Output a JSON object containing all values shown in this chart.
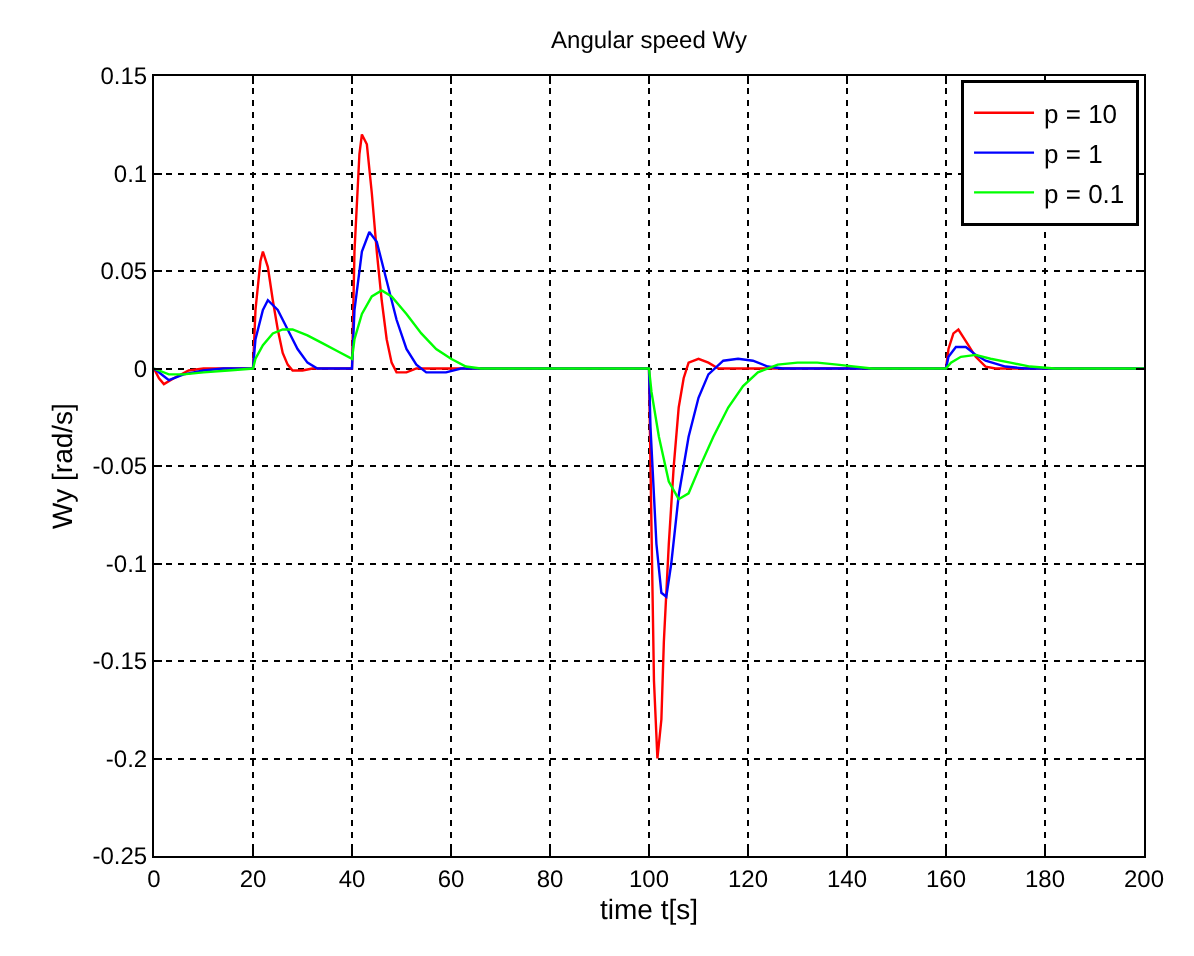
{
  "chart_data": {
    "type": "line",
    "title": "Angular speed Wy",
    "xlabel": "time t[s]",
    "ylabel": "Wy [rad/s]",
    "xlim": [
      0,
      200
    ],
    "xticks": [
      0,
      20,
      40,
      60,
      80,
      100,
      120,
      140,
      160,
      180,
      200
    ],
    "ylim": [
      -0.25,
      0.15
    ],
    "yticks": [
      -0.25,
      -0.2,
      -0.15,
      -0.1,
      -0.05,
      0,
      0.05,
      0.1,
      0.15
    ],
    "grid": true,
    "legend": "top right",
    "line_style": "solid",
    "marker": "none",
    "series": [
      {
        "name": "p = 10",
        "color": "#ff0000",
        "x": [
          0,
          1,
          2,
          4,
          7,
          10,
          20,
          20.5,
          21.5,
          22,
          23,
          24,
          25,
          26,
          27,
          28,
          30,
          32,
          40,
          40.5,
          41.5,
          42,
          43,
          44,
          45,
          46,
          47,
          48,
          49,
          51,
          53,
          60,
          100,
          100.3,
          101,
          101.7,
          102.5,
          103,
          104,
          105,
          106,
          107,
          108,
          110,
          112,
          114,
          160,
          160.5,
          161.5,
          162.5,
          164,
          166,
          168,
          170,
          200
        ],
        "values": [
          0,
          -0.005,
          -0.008,
          -0.005,
          -0.001,
          0,
          0,
          0.03,
          0.055,
          0.06,
          0.052,
          0.035,
          0.02,
          0.008,
          0.002,
          -0.001,
          -0.001,
          0,
          0,
          0.06,
          0.11,
          0.12,
          0.115,
          0.09,
          0.06,
          0.035,
          0.015,
          0.003,
          -0.002,
          -0.002,
          0,
          0,
          0,
          -0.05,
          -0.16,
          -0.2,
          -0.18,
          -0.14,
          -0.09,
          -0.05,
          -0.02,
          -0.005,
          0.003,
          0.005,
          0.003,
          0,
          0,
          0.01,
          0.018,
          0.02,
          0.014,
          0.006,
          0.001,
          0,
          0
        ]
      },
      {
        "name": "p = 1",
        "color": "#0000ff",
        "x": [
          0,
          2,
          3,
          6,
          10,
          14,
          20,
          20.5,
          22,
          23,
          25,
          27,
          29,
          31,
          33,
          40,
          40.5,
          42,
          43.5,
          45,
          47,
          49,
          51,
          53,
          55,
          59,
          62,
          100,
          100.3,
          101.5,
          102.5,
          103.5,
          104.5,
          106,
          108,
          110,
          112,
          115,
          118,
          121,
          124,
          127,
          160,
          160.5,
          162,
          164,
          166,
          168,
          172,
          176,
          200
        ],
        "values": [
          0,
          -0.004,
          -0.006,
          -0.003,
          -0.001,
          0,
          0,
          0.015,
          0.03,
          0.035,
          0.03,
          0.02,
          0.01,
          0.003,
          0,
          0,
          0.03,
          0.06,
          0.07,
          0.065,
          0.045,
          0.025,
          0.01,
          0.002,
          -0.002,
          -0.002,
          0,
          0,
          -0.03,
          -0.09,
          -0.115,
          -0.117,
          -0.1,
          -0.065,
          -0.035,
          -0.015,
          -0.003,
          0.004,
          0.005,
          0.004,
          0.001,
          0,
          0,
          0.006,
          0.011,
          0.011,
          0.007,
          0.004,
          0.001,
          0,
          0
        ]
      },
      {
        "name": "p = 0.1",
        "color": "#00ff00",
        "x": [
          0,
          3,
          6,
          10,
          15,
          20,
          20.5,
          22,
          24,
          26,
          28,
          31,
          34,
          37,
          40,
          40.5,
          42,
          44,
          46,
          48,
          51,
          54,
          57,
          60,
          63,
          66,
          100,
          100.5,
          102,
          104,
          106,
          108,
          110,
          113,
          116,
          119,
          122,
          126,
          130,
          134,
          138,
          145,
          160,
          161,
          163,
          166,
          169,
          173,
          177,
          182,
          200
        ],
        "values": [
          0,
          -0.003,
          -0.003,
          -0.002,
          -0.001,
          0,
          0.005,
          0.012,
          0.018,
          0.02,
          0.02,
          0.017,
          0.013,
          0.009,
          0.005,
          0.015,
          0.028,
          0.037,
          0.04,
          0.037,
          0.028,
          0.018,
          0.01,
          0.005,
          0.001,
          0,
          0,
          -0.012,
          -0.035,
          -0.058,
          -0.067,
          -0.064,
          -0.052,
          -0.035,
          -0.02,
          -0.009,
          -0.002,
          0.002,
          0.003,
          0.003,
          0.002,
          0,
          0,
          0.003,
          0.006,
          0.007,
          0.005,
          0.003,
          0.001,
          0,
          0
        ]
      }
    ]
  }
}
